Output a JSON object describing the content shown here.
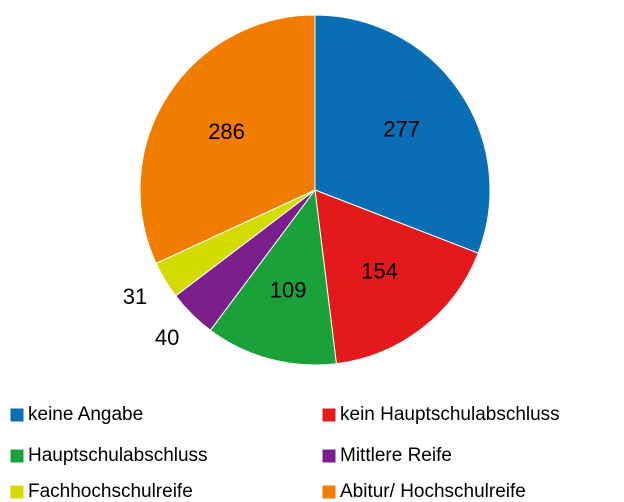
{
  "chart_data": {
    "type": "pie",
    "categories": [
      "keine Angabe",
      "kein Hauptschulabschluss",
      "Hauptschulabschluss",
      "Mittlere Reife",
      "Fachhochschulreife",
      "Abitur/ Hochschulreife"
    ],
    "values": [
      277,
      154,
      109,
      40,
      31,
      286
    ],
    "colors": [
      "#0a6eb4",
      "#e3191b",
      "#1aa13a",
      "#7b1f8c",
      "#d4db00",
      "#f07d00"
    ],
    "legend": "bottom"
  }
}
